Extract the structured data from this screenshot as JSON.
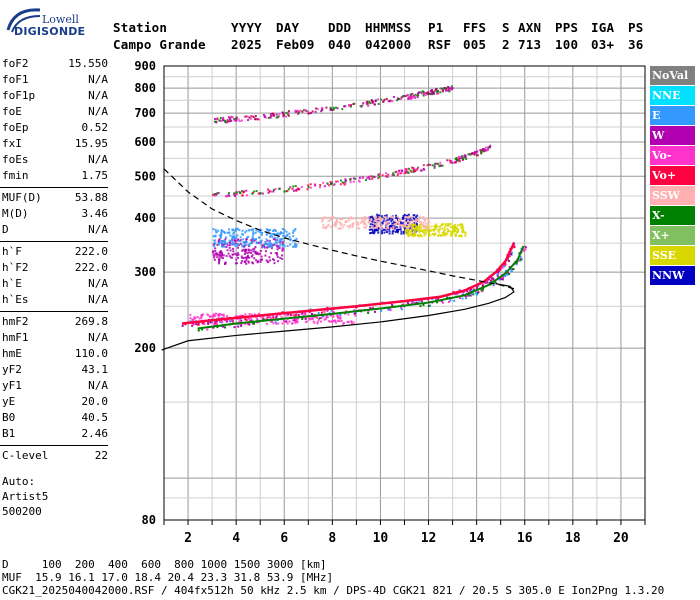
{
  "logo": {
    "line1": "Lowell",
    "line2": "DIGISONDE"
  },
  "header": {
    "labels": [
      "Station",
      "YYYY",
      "DAY",
      "DDD",
      "HHMMSS",
      "P1",
      "FFS",
      "S",
      "AXN",
      "PPS",
      "IGA",
      "PS"
    ],
    "values": [
      "Campo Grande",
      "2025",
      "Feb09",
      "040",
      "042000",
      "RSF",
      "005",
      "2",
      "713",
      "100",
      "03+",
      "36"
    ]
  },
  "params": [
    {
      "label": "foF2",
      "value": "15.550"
    },
    {
      "label": "foF1",
      "value": "N/A"
    },
    {
      "label": "foF1p",
      "value": "N/A"
    },
    {
      "label": "foE",
      "value": "N/A"
    },
    {
      "label": "foEp",
      "value": "0.52"
    },
    {
      "label": "fxI",
      "value": "15.95"
    },
    {
      "label": "foEs",
      "value": "N/A"
    },
    {
      "label": "fmin",
      "value": "1.75"
    },
    {
      "label": "MUF(D)",
      "value": "53.88"
    },
    {
      "label": "M(D)",
      "value": "3.46"
    },
    {
      "label": "D",
      "value": "N/A"
    },
    {
      "label": "h`F",
      "value": "222.0"
    },
    {
      "label": "h`F2",
      "value": "222.0"
    },
    {
      "label": "h`E",
      "value": "N/A"
    },
    {
      "label": "h`Es",
      "value": "N/A"
    },
    {
      "label": "hmF2",
      "value": "269.8"
    },
    {
      "label": "hmF1",
      "value": "N/A"
    },
    {
      "label": "hmE",
      "value": "110.0"
    },
    {
      "label": "yF2",
      "value": "43.1"
    },
    {
      "label": "yF1",
      "value": "N/A"
    },
    {
      "label": "yE",
      "value": "20.0"
    },
    {
      "label": "B0",
      "value": "40.5"
    },
    {
      "label": "B1",
      "value": "2.46"
    },
    {
      "label": "C-level",
      "value": "22"
    }
  ],
  "auto": {
    "line1": "Auto:",
    "line2": "Artist5",
    "line3": "500200"
  },
  "legend": [
    {
      "label": "NoVal",
      "bg": "#808080",
      "fg": "#ffffff"
    },
    {
      "label": "NNE",
      "bg": "#00e0ff",
      "fg": "#ffffff"
    },
    {
      "label": "E",
      "bg": "#3399ff",
      "fg": "#ffffff"
    },
    {
      "label": "W",
      "bg": "#b000b0",
      "fg": "#ffffff"
    },
    {
      "label": "Vo-",
      "bg": "#ff33cc",
      "fg": "#ffffff"
    },
    {
      "label": "Vo+",
      "bg": "#ff0040",
      "fg": "#ffffff"
    },
    {
      "label": "SSW",
      "bg": "#ffb0b0",
      "fg": "#ffffff"
    },
    {
      "label": "X-",
      "bg": "#008000",
      "fg": "#ffffff"
    },
    {
      "label": "X+",
      "bg": "#80c060",
      "fg": "#ffffff"
    },
    {
      "label": "SSE",
      "bg": "#d8d800",
      "fg": "#ffffff"
    },
    {
      "label": "NNW",
      "bg": "#0000c0",
      "fg": "#ffffff"
    }
  ],
  "chart_data": {
    "type": "scatter",
    "xlim": [
      1,
      21
    ],
    "ylim": [
      80,
      900
    ],
    "y_log_scale": true,
    "grid": true,
    "x_ticks": [
      2,
      4,
      6,
      8,
      10,
      12,
      14,
      16,
      18,
      20
    ],
    "y_ticks": [
      80,
      200,
      300,
      400,
      500,
      600,
      700,
      800,
      900
    ],
    "trace_O": {
      "x": [
        1.75,
        3,
        5,
        7,
        9,
        11,
        12.5,
        13.5,
        14.3,
        14.8,
        15.2,
        15.55
      ],
      "y": [
        228,
        232,
        238,
        244,
        250,
        257,
        263,
        272,
        285,
        300,
        318,
        350
      ]
    },
    "trace_X": {
      "x": [
        2.4,
        4,
        6,
        8,
        10,
        12,
        13.5,
        14.5,
        15.2,
        15.7,
        15.95
      ],
      "y": [
        222,
        228,
        234,
        240,
        247,
        255,
        265,
        280,
        298,
        320,
        345
      ]
    },
    "profile": {
      "x": [
        0.9,
        2,
        4,
        6,
        8,
        10,
        12,
        13.5,
        14.5,
        15.2,
        15.55,
        15.4,
        14.8
      ],
      "y": [
        198,
        208,
        214,
        219,
        224,
        230,
        238,
        246,
        254,
        262,
        270,
        278,
        282
      ]
    },
    "dashed_curve": {
      "x": [
        1,
        2,
        3,
        4,
        5,
        6,
        7,
        8,
        9,
        10,
        11,
        12,
        13,
        14,
        15,
        15.6
      ],
      "y": [
        520,
        460,
        420,
        395,
        375,
        360,
        348,
        337,
        327,
        318,
        310,
        302,
        294,
        287,
        280,
        274
      ]
    },
    "echo_traces": [
      {
        "color": "#b00040",
        "x": [
          3,
          5,
          7,
          9,
          11,
          12,
          13
        ],
        "y": [
          675,
          690,
          710,
          735,
          765,
          785,
          805
        ]
      },
      {
        "color": "#ff0040",
        "x": [
          3,
          5,
          7,
          9,
          11,
          13,
          14,
          14.5
        ],
        "y": [
          455,
          462,
          475,
          492,
          515,
          545,
          568,
          588
        ]
      }
    ],
    "echo_clouds": [
      {
        "color": "#b000b0",
        "x": [
          3,
          6
        ],
        "y": [
          315,
          360
        ]
      },
      {
        "color": "#3399ff",
        "x": [
          3,
          6.5
        ],
        "y": [
          345,
          380
        ]
      },
      {
        "color": "#0000c0",
        "x": [
          9.5,
          11.5
        ],
        "y": [
          370,
          410
        ]
      },
      {
        "color": "#d8d800",
        "x": [
          11,
          13.5
        ],
        "y": [
          365,
          390
        ]
      },
      {
        "color": "#ffb0b0",
        "x": [
          7.5,
          12
        ],
        "y": [
          380,
          405
        ]
      },
      {
        "color": "#ff33cc",
        "x": [
          2,
          9
        ],
        "y": [
          228,
          242
        ]
      }
    ]
  },
  "footer": {
    "line1": "D     100  200  400  600  800 1000 1500 3000 [km]",
    "line2": "MUF  15.9 16.1 17.0 18.4 20.4 23.3 31.8 53.9 [MHz]",
    "line3": "CGK21_2025040042000.RSF / 404fx512h 50 kHz 2.5 km / DPS-4D CGK21 821 / 20.5 S 305.0 E Ion2Png 1.3.20"
  }
}
